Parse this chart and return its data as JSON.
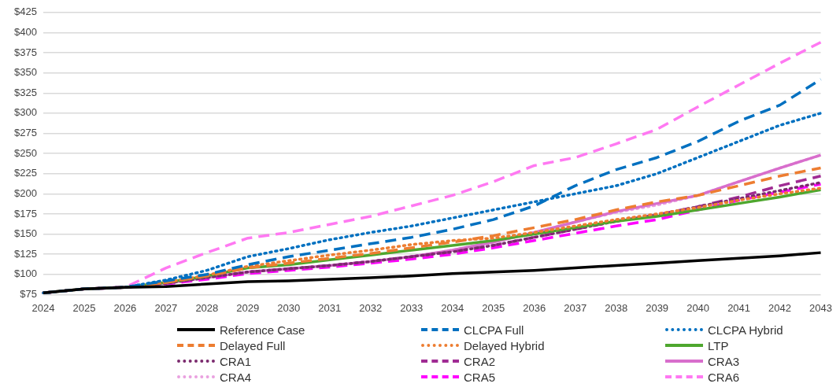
{
  "chart_data": {
    "type": "line",
    "categories": [
      "2024",
      "2025",
      "2026",
      "2027",
      "2028",
      "2029",
      "2030",
      "2031",
      "2032",
      "2033",
      "2034",
      "2035",
      "2036",
      "2037",
      "2038",
      "2039",
      "2040",
      "2041",
      "2042",
      "2043"
    ],
    "ylim": [
      75,
      425
    ],
    "yticks": [
      {
        "value": 75,
        "label": "$75"
      },
      {
        "value": 100,
        "label": "$100"
      },
      {
        "value": 125,
        "label": "$125"
      },
      {
        "value": 150,
        "label": "$150"
      },
      {
        "value": 175,
        "label": "$175"
      },
      {
        "value": 200,
        "label": "$200"
      },
      {
        "value": 225,
        "label": "$225"
      },
      {
        "value": 250,
        "label": "$250"
      },
      {
        "value": 275,
        "label": "$275"
      },
      {
        "value": 300,
        "label": "$300"
      },
      {
        "value": 325,
        "label": "$325"
      },
      {
        "value": 350,
        "label": "$350"
      },
      {
        "value": 375,
        "label": "$375"
      },
      {
        "value": 400,
        "label": "$400"
      },
      {
        "value": 425,
        "label": "$425"
      }
    ],
    "grid": "y",
    "legend": "bottom",
    "marker": "none",
    "series": [
      {
        "name": "Reference Case",
        "color": "#000000",
        "line_style": "solid",
        "values": [
          77,
          82,
          84,
          85,
          88,
          91,
          92,
          94,
          96,
          98,
          101,
          103,
          105,
          108,
          111,
          114,
          117,
          120,
          123,
          127
        ]
      },
      {
        "name": "CLCPA Full",
        "color": "#0070c0",
        "line_style": "dashed",
        "values": [
          77,
          82,
          84,
          92,
          100,
          112,
          122,
          130,
          138,
          146,
          156,
          168,
          185,
          210,
          230,
          245,
          265,
          290,
          310,
          342
        ]
      },
      {
        "name": "CLCPA Hybrid",
        "color": "#0070c0",
        "line_style": "dotted",
        "values": [
          77,
          82,
          84,
          93,
          105,
          122,
          132,
          143,
          152,
          160,
          170,
          180,
          190,
          200,
          210,
          225,
          245,
          265,
          285,
          300
        ]
      },
      {
        "name": "Delayed Full",
        "color": "#ed7d31",
        "line_style": "dashed",
        "values": [
          77,
          82,
          84,
          90,
          98,
          108,
          114,
          120,
          126,
          133,
          140,
          148,
          158,
          168,
          180,
          190,
          198,
          210,
          222,
          232
        ]
      },
      {
        "name": "Delayed Hybrid",
        "color": "#ed7d31",
        "line_style": "dotted",
        "values": [
          77,
          82,
          84,
          90,
          99,
          110,
          117,
          124,
          130,
          137,
          142,
          145,
          152,
          160,
          168,
          175,
          183,
          192,
          200,
          207
        ]
      },
      {
        "name": "LTP",
        "color": "#4ea72e",
        "line_style": "solid",
        "values": [
          77,
          82,
          84,
          90,
          98,
          108,
          112,
          118,
          124,
          130,
          136,
          142,
          150,
          158,
          166,
          172,
          180,
          188,
          196,
          205
        ]
      },
      {
        "name": "CRA1",
        "color": "#7b2a6e",
        "line_style": "dotted",
        "values": [
          77,
          82,
          84,
          89,
          96,
          103,
          107,
          111,
          116,
          122,
          128,
          136,
          146,
          156,
          166,
          174,
          184,
          194,
          204,
          214
        ]
      },
      {
        "name": "CRA2",
        "color": "#a02b93",
        "line_style": "dashed",
        "values": [
          77,
          82,
          84,
          89,
          96,
          103,
          107,
          111,
          116,
          122,
          128,
          136,
          146,
          156,
          166,
          174,
          184,
          196,
          210,
          222
        ]
      },
      {
        "name": "CRA3",
        "color": "#d86ecc",
        "line_style": "solid",
        "values": [
          77,
          82,
          84,
          89,
          96,
          103,
          107,
          111,
          116,
          122,
          130,
          140,
          152,
          165,
          178,
          188,
          198,
          215,
          232,
          248
        ]
      },
      {
        "name": "CRA4",
        "color": "#eaa1e0",
        "line_style": "dotted",
        "values": [
          77,
          82,
          84,
          89,
          96,
          103,
          107,
          111,
          116,
          122,
          130,
          140,
          152,
          165,
          177,
          186,
          198,
          215,
          232,
          248
        ]
      },
      {
        "name": "CRA5",
        "color": "#ff00ff",
        "line_style": "dashed",
        "values": [
          77,
          82,
          84,
          88,
          94,
          101,
          105,
          109,
          114,
          119,
          125,
          133,
          142,
          151,
          160,
          168,
          180,
          192,
          202,
          212
        ]
      },
      {
        "name": "CRA6",
        "color": "#ff79f2",
        "line_style": "dashed",
        "values": [
          77,
          82,
          84,
          108,
          127,
          145,
          152,
          162,
          172,
          185,
          198,
          215,
          235,
          245,
          262,
          280,
          308,
          335,
          362,
          388
        ]
      }
    ]
  }
}
